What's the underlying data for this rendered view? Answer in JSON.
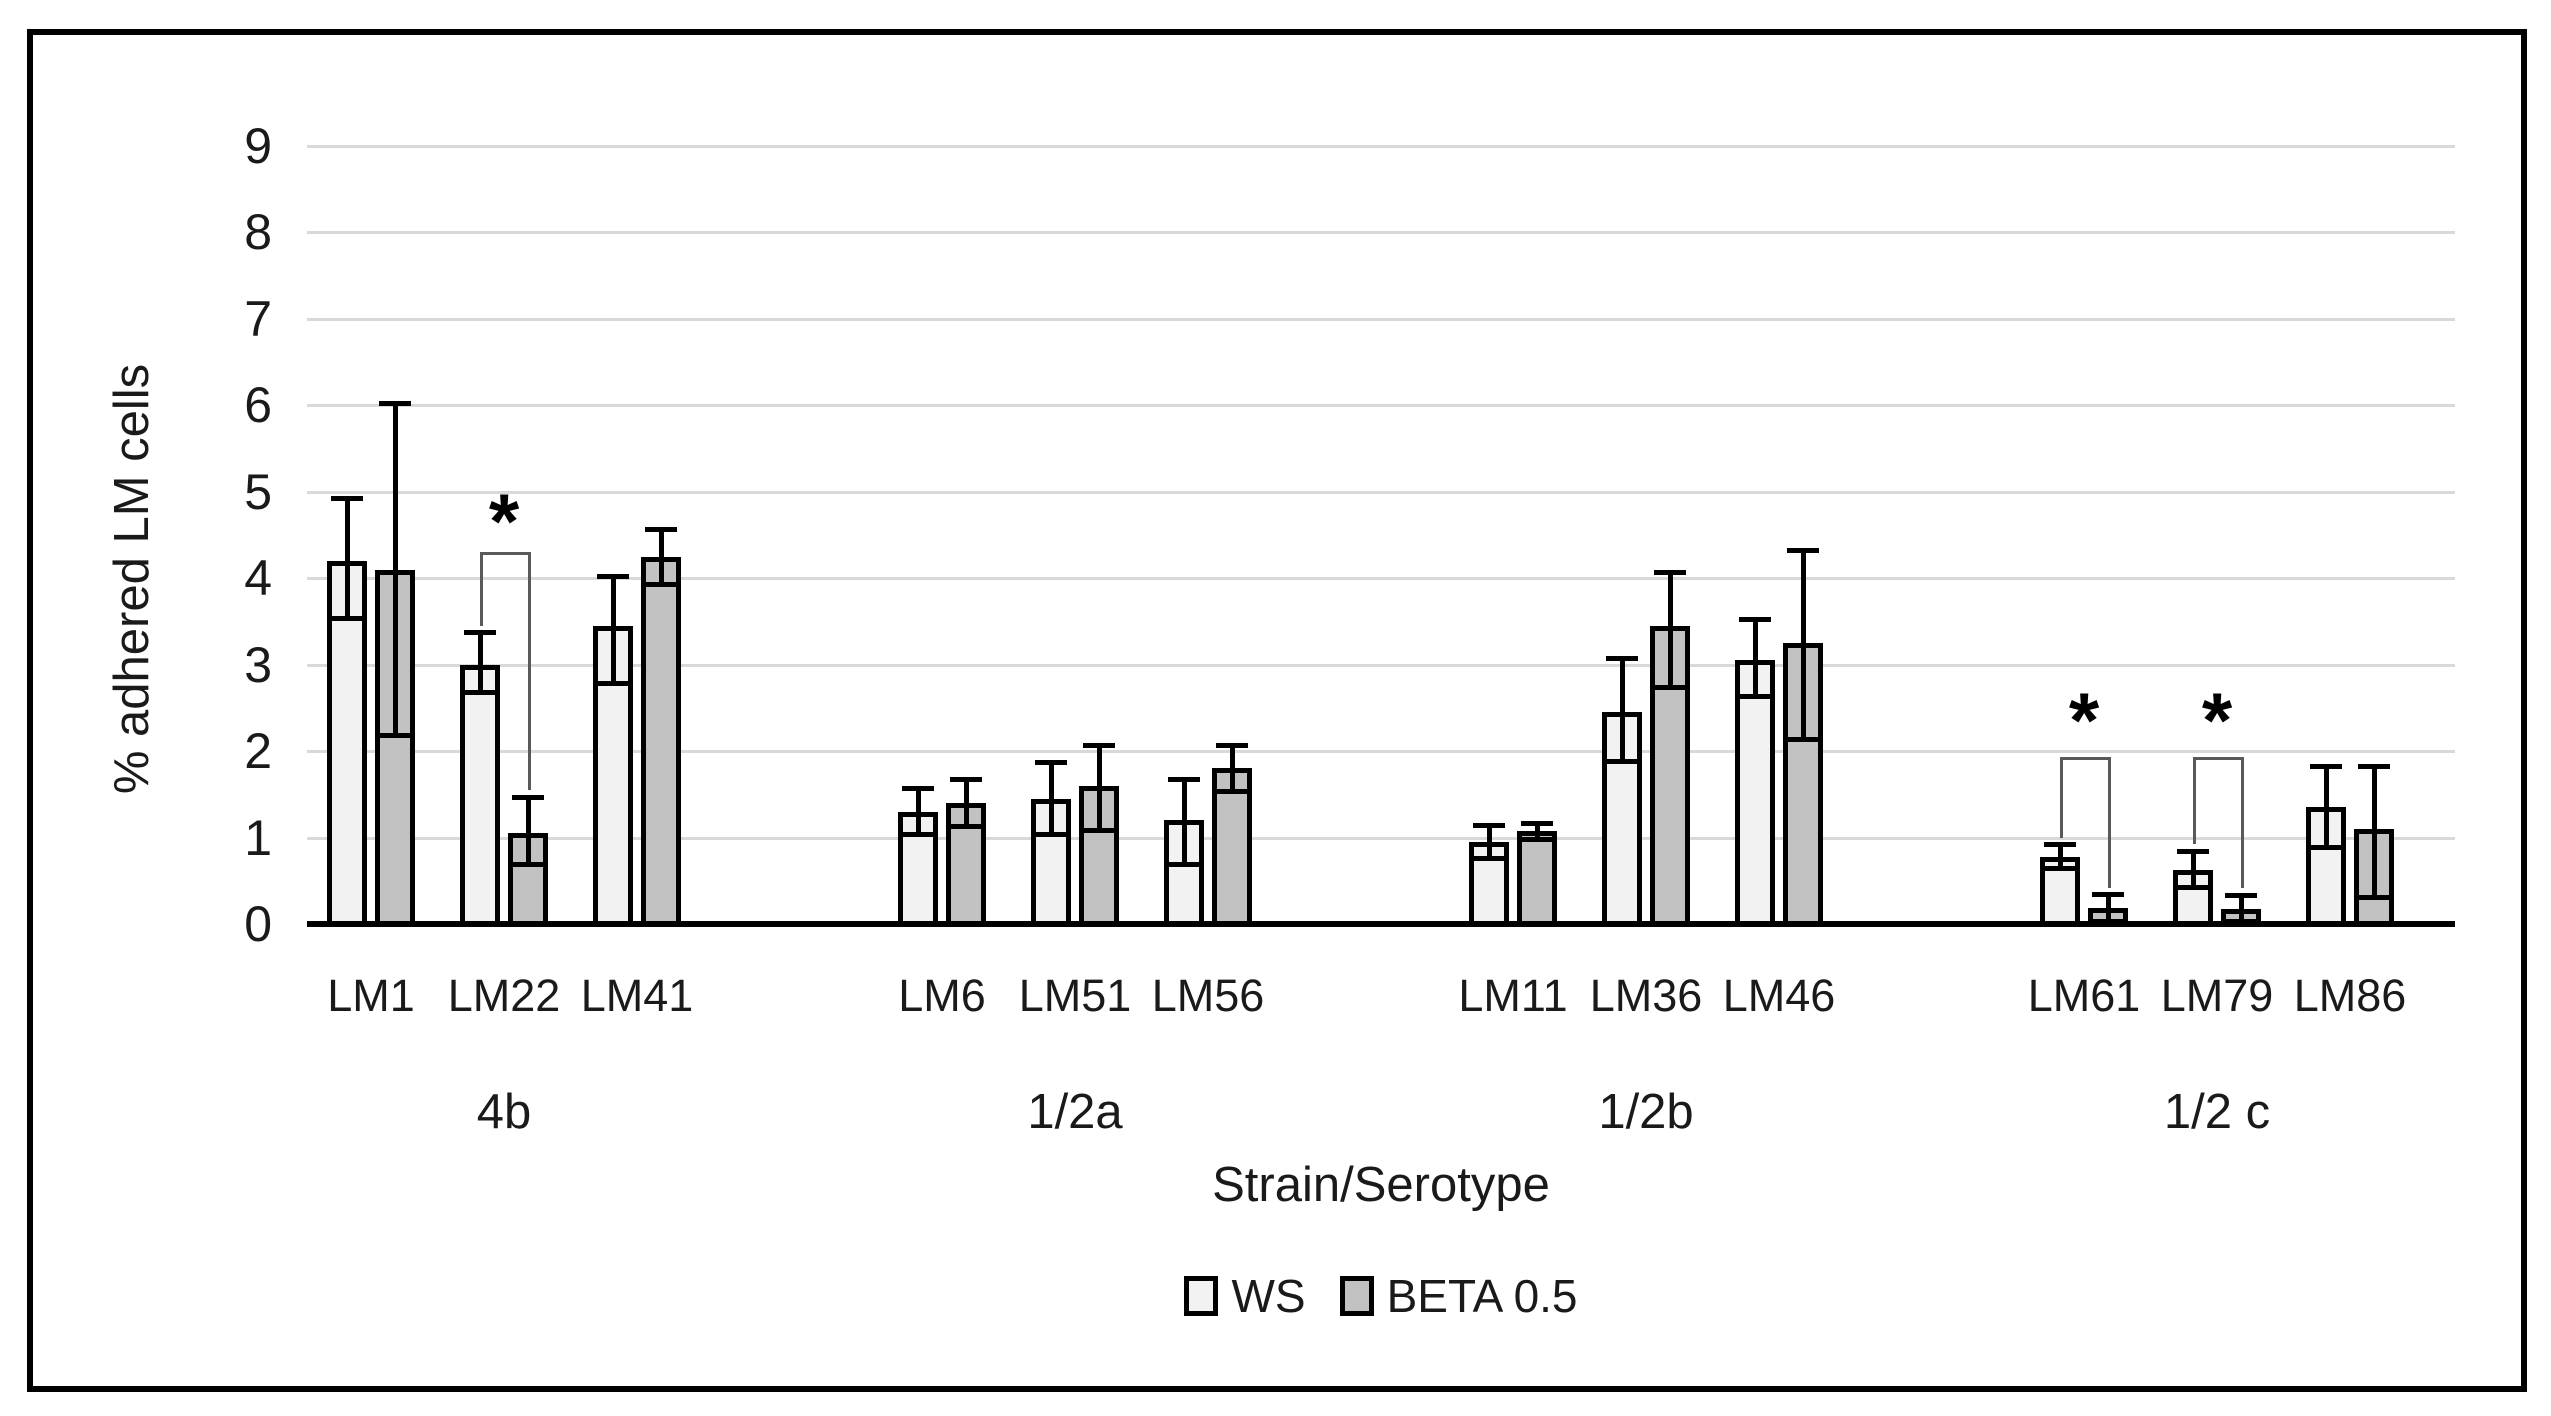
{
  "figure": {
    "background": "#ffffff",
    "border_color": "#000000"
  },
  "chart_data": {
    "type": "bar",
    "title": "",
    "ylabel": "% adhered LM cells",
    "xlabel": "Strain/Serotype",
    "ylim": [
      0,
      9
    ],
    "yticks": [
      0,
      1,
      2,
      3,
      4,
      5,
      6,
      7,
      8,
      9
    ],
    "grid": true,
    "legend_position": "bottom",
    "colors": {
      "ws_fill": "#f2f2f2",
      "beta_fill": "#c2c2c2",
      "bar_border": "#000000",
      "gridline": "#d9d9d9",
      "axis_line": "#000000",
      "bracket": "#595959",
      "text": "#1a1a1a"
    },
    "legend": [
      {
        "label": "WS",
        "fill": "#f2f2f2"
      },
      {
        "label": "BETA 0.5",
        "fill": "#c2c2c2"
      }
    ],
    "groups": [
      {
        "serotype": "4b",
        "strains": [
          {
            "name": "LM1",
            "ws": {
              "value": 4.2,
              "err_low": 3.55,
              "err_high": 4.9
            },
            "beta": {
              "value": 4.1,
              "err_low": 2.2,
              "err_high": 6.0
            }
          },
          {
            "name": "LM22",
            "ws": {
              "value": 3.0,
              "err_low": 2.7,
              "err_high": 3.35
            },
            "beta": {
              "value": 1.05,
              "err_low": 0.7,
              "err_high": 1.45
            },
            "significance": {
              "marker": "*",
              "bracket_top": 4.3,
              "left_drop_to": 3.45,
              "right_drop_to": 1.55,
              "marker_y": 4.8
            }
          },
          {
            "name": "LM41",
            "ws": {
              "value": 3.45,
              "err_low": 2.8,
              "err_high": 4.0
            },
            "beta": {
              "value": 4.25,
              "err_low": 3.95,
              "err_high": 4.55
            }
          }
        ]
      },
      {
        "serotype": "1/2a",
        "strains": [
          {
            "name": "LM6",
            "ws": {
              "value": 1.3,
              "err_low": 1.05,
              "err_high": 1.55
            },
            "beta": {
              "value": 1.4,
              "err_low": 1.15,
              "err_high": 1.65
            }
          },
          {
            "name": "LM51",
            "ws": {
              "value": 1.45,
              "err_low": 1.05,
              "err_high": 1.85
            },
            "beta": {
              "value": 1.6,
              "err_low": 1.1,
              "err_high": 2.05
            }
          },
          {
            "name": "LM56",
            "ws": {
              "value": 1.2,
              "err_low": 0.7,
              "err_high": 1.65
            },
            "beta": {
              "value": 1.8,
              "err_low": 1.55,
              "err_high": 2.05
            }
          }
        ]
      },
      {
        "serotype": "1/2b",
        "strains": [
          {
            "name": "LM11",
            "ws": {
              "value": 0.95,
              "err_low": 0.78,
              "err_high": 1.12
            },
            "beta": {
              "value": 1.08,
              "err_low": 1.0,
              "err_high": 1.14
            }
          },
          {
            "name": "LM36",
            "ws": {
              "value": 2.45,
              "err_low": 1.9,
              "err_high": 3.05
            },
            "beta": {
              "value": 3.45,
              "err_low": 2.75,
              "err_high": 4.05
            }
          },
          {
            "name": "LM46",
            "ws": {
              "value": 3.05,
              "err_low": 2.65,
              "err_high": 3.5
            },
            "beta": {
              "value": 3.25,
              "err_low": 2.15,
              "err_high": 4.3
            }
          }
        ]
      },
      {
        "serotype": "1/2 c",
        "strains": [
          {
            "name": "LM61",
            "ws": {
              "value": 0.78,
              "err_low": 0.66,
              "err_high": 0.9
            },
            "beta": {
              "value": 0.18,
              "err_low": 0.05,
              "err_high": 0.32
            },
            "significance": {
              "marker": "*",
              "bracket_top": 1.93,
              "left_drop_to": 1.0,
              "right_drop_to": 0.42,
              "marker_y": 2.5
            }
          },
          {
            "name": "LM79",
            "ws": {
              "value": 0.62,
              "err_low": 0.44,
              "err_high": 0.82
            },
            "beta": {
              "value": 0.17,
              "err_low": 0.05,
              "err_high": 0.31
            },
            "significance": {
              "marker": "*",
              "bracket_top": 1.93,
              "left_drop_to": 0.92,
              "right_drop_to": 0.42,
              "marker_y": 2.5
            }
          },
          {
            "name": "LM86",
            "ws": {
              "value": 1.35,
              "err_low": 0.9,
              "err_high": 1.8
            },
            "beta": {
              "value": 1.1,
              "err_low": 0.32,
              "err_high": 1.8
            }
          }
        ]
      }
    ]
  }
}
